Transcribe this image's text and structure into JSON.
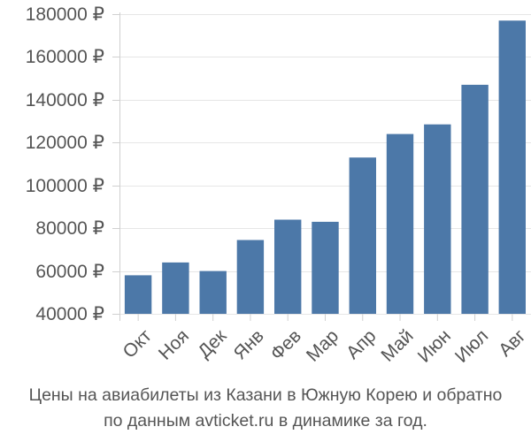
{
  "chart_data": {
    "type": "bar",
    "categories": [
      "Окт",
      "Ноя",
      "Дек",
      "Янв",
      "Фев",
      "Мар",
      "Апр",
      "Май",
      "Июн",
      "Июл",
      "Авг"
    ],
    "values": [
      58000,
      64000,
      60000,
      74500,
      84000,
      83000,
      113000,
      124000,
      128500,
      147000,
      177000
    ],
    "ylim": [
      40000,
      180000
    ],
    "yticks": [
      40000,
      60000,
      80000,
      100000,
      120000,
      140000,
      160000,
      180000
    ],
    "ytick_labels": [
      "40000 ₽",
      "60000 ₽",
      "80000 ₽",
      "100000 ₽",
      "120000 ₽",
      "140000 ₽",
      "160000 ₽",
      "180000 ₽"
    ],
    "bar_color": "#4c78a8",
    "grid": true,
    "title": "",
    "xlabel": "",
    "ylabel": ""
  },
  "caption": {
    "line1": "Цены на авиабилеты из Казани в Южную Корею и обратно",
    "line2": "по данным avticket.ru в динамике за год."
  }
}
